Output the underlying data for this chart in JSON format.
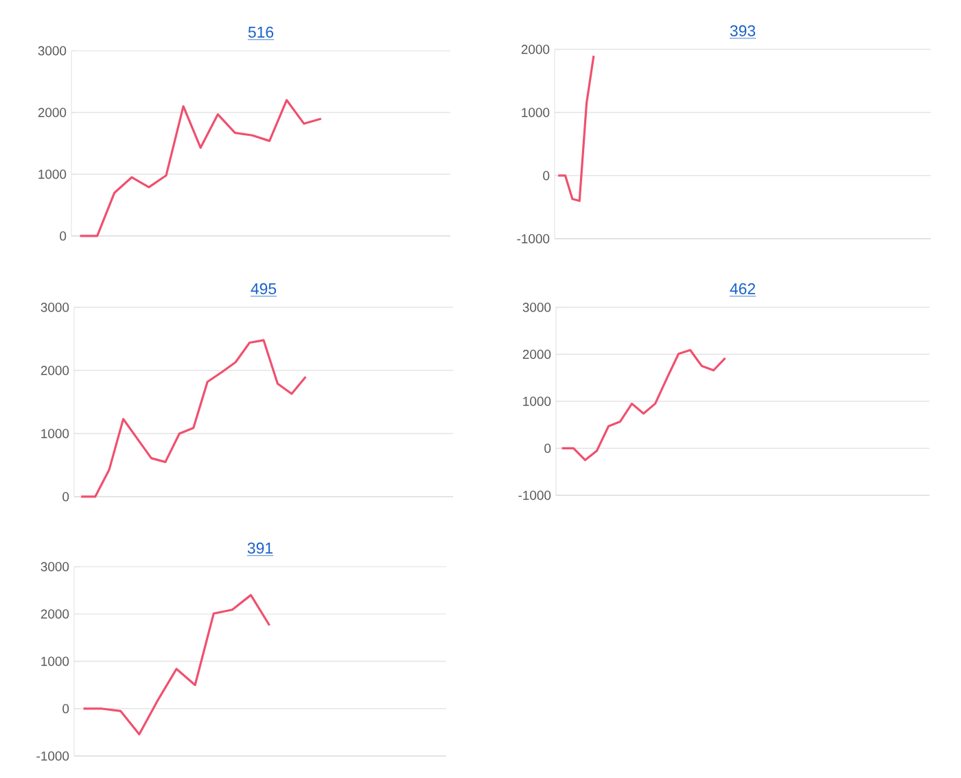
{
  "chart_data": [
    {
      "type": "line",
      "title": "516",
      "color": "#f0506e",
      "grid": "y",
      "tick_labels": "y",
      "ylim": [
        0,
        3000
      ],
      "yticks": [
        0,
        1000,
        2000,
        3000
      ],
      "categories": [
        null,
        null,
        null,
        null,
        null,
        null,
        null,
        null,
        null,
        null,
        null,
        null,
        null,
        null,
        null,
        null,
        null,
        null,
        null,
        null,
        null,
        null
      ],
      "values": [
        0,
        0,
        700,
        950,
        790,
        980,
        2100,
        1430,
        1970,
        1670,
        1630,
        1540,
        2200,
        1820,
        1900,
        null,
        null,
        null,
        null,
        null,
        null,
        null
      ]
    },
    {
      "type": "line",
      "title": "393",
      "color": "#f0506e",
      "grid": "y",
      "tick_labels": "y",
      "ylim": [
        -1000,
        2000
      ],
      "yticks": [
        -1000,
        0,
        1000,
        2000
      ],
      "categories": [
        null,
        null,
        null,
        null,
        null,
        null,
        null,
        null,
        null,
        null,
        null,
        null,
        null,
        null,
        null,
        null,
        null,
        null,
        null,
        null,
        null,
        null,
        null,
        null,
        null,
        null,
        null,
        null,
        null,
        null,
        null,
        null,
        null,
        null,
        null,
        null,
        null,
        null,
        null,
        null,
        null,
        null,
        null,
        null,
        null,
        null,
        null,
        null,
        null,
        null,
        null,
        null,
        null
      ],
      "values": [
        0,
        0,
        -370,
        -400,
        1150,
        1900,
        null,
        null,
        null,
        null,
        null,
        null,
        null,
        null,
        null,
        null,
        null,
        null,
        null,
        null,
        null,
        null,
        null,
        null,
        null,
        null,
        null,
        null,
        null,
        null,
        null,
        null,
        null,
        null,
        null,
        null,
        null,
        null,
        null,
        null,
        null,
        null,
        null,
        null,
        null,
        null,
        null,
        null,
        null,
        null,
        null,
        null,
        null
      ]
    },
    {
      "type": "line",
      "title": "495",
      "color": "#f0506e",
      "grid": "y",
      "tick_labels": "y",
      "ylim": [
        0,
        3000
      ],
      "yticks": [
        0,
        1000,
        2000,
        3000
      ],
      "categories": [
        null,
        null,
        null,
        null,
        null,
        null,
        null,
        null,
        null,
        null,
        null,
        null,
        null,
        null,
        null,
        null,
        null,
        null,
        null,
        null,
        null,
        null,
        null,
        null,
        null,
        null,
        null
      ],
      "values": [
        0,
        0,
        430,
        1230,
        920,
        610,
        550,
        1000,
        1090,
        1820,
        1970,
        2130,
        2440,
        2480,
        1790,
        1630,
        1900,
        null,
        null,
        null,
        null,
        null,
        null,
        null,
        null,
        null,
        null
      ]
    },
    {
      "type": "line",
      "title": "462",
      "color": "#f0506e",
      "grid": "y",
      "tick_labels": "y",
      "ylim": [
        -1000,
        3000
      ],
      "yticks": [
        -1000,
        0,
        1000,
        2000,
        3000
      ],
      "categories": [
        null,
        null,
        null,
        null,
        null,
        null,
        null,
        null,
        null,
        null,
        null,
        null,
        null,
        null,
        null,
        null,
        null,
        null,
        null,
        null,
        null,
        null,
        null,
        null,
        null,
        null,
        null,
        null,
        null,
        null,
        null,
        null
      ],
      "values": [
        0,
        0,
        -250,
        -50,
        470,
        570,
        950,
        740,
        950,
        1490,
        2010,
        2090,
        1750,
        1660,
        1920,
        null,
        null,
        null,
        null,
        null,
        null,
        null,
        null,
        null,
        null,
        null,
        null,
        null,
        null,
        null,
        null,
        null
      ]
    },
    {
      "type": "line",
      "title": "391",
      "color": "#f0506e",
      "grid": "y",
      "tick_labels": "y",
      "ylim": [
        -1000,
        3000
      ],
      "yticks": [
        -1000,
        0,
        1000,
        2000,
        3000
      ],
      "categories": [
        null,
        null,
        null,
        null,
        null,
        null,
        null,
        null,
        null,
        null,
        null,
        null,
        null,
        null,
        null,
        null,
        null,
        null,
        null,
        null
      ],
      "values": [
        0,
        0,
        -50,
        -540,
        180,
        840,
        500,
        2010,
        2090,
        2400,
        1760,
        null,
        null,
        null,
        null,
        null,
        null,
        null,
        null,
        null
      ]
    }
  ]
}
